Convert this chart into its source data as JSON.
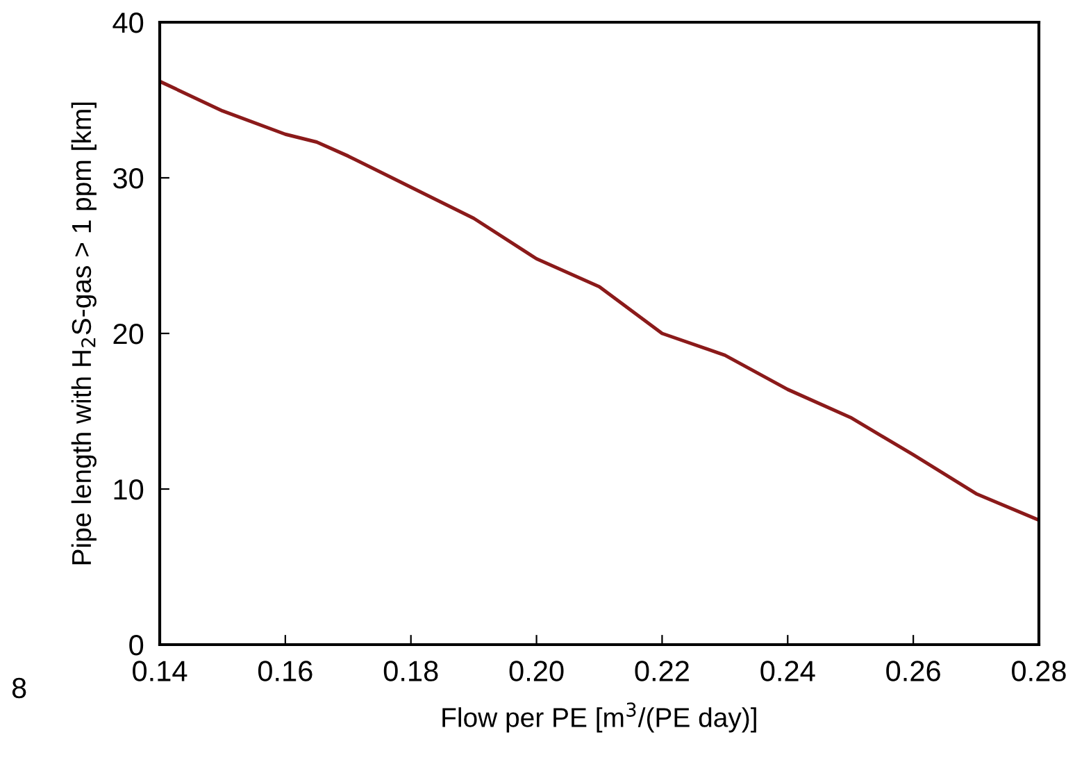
{
  "chart_data": {
    "type": "line",
    "xlabel": "Flow per PE [m$^{3}$/(PE day)]",
    "ylabel": "Pipe length with H$_{2}$S-gas > 1 ppm [km]",
    "x": [
      0.14,
      0.15,
      0.16,
      0.165,
      0.17,
      0.18,
      0.19,
      0.2,
      0.21,
      0.22,
      0.23,
      0.24,
      0.25,
      0.26,
      0.27,
      0.28
    ],
    "series": [
      {
        "color": "#8b1a1a",
        "values": [
          36.2,
          34.3,
          32.8,
          32.3,
          31.4,
          29.4,
          27.4,
          24.8,
          23.0,
          20.0,
          18.6,
          16.4,
          14.6,
          12.2,
          9.7,
          8.0
        ]
      }
    ],
    "xlim": [
      0.14,
      0.28
    ],
    "xticks": [
      {
        "value": 0.14,
        "label": "0.14"
      },
      {
        "value": 0.16,
        "label": "0.16"
      },
      {
        "value": 0.18,
        "label": "0.18"
      },
      {
        "value": 0.2,
        "label": "0.20"
      },
      {
        "value": 0.22,
        "label": "0.22"
      },
      {
        "value": 0.24,
        "label": "0.24"
      },
      {
        "value": 0.26,
        "label": "0.26"
      },
      {
        "value": 0.28,
        "label": "0.28"
      }
    ],
    "ylim": [
      0,
      40
    ],
    "yticks": [
      0,
      10,
      20,
      30,
      40
    ],
    "annotations": [
      "8"
    ],
    "grid": false,
    "legend": false,
    "marker": "none",
    "line_style": "solid"
  }
}
